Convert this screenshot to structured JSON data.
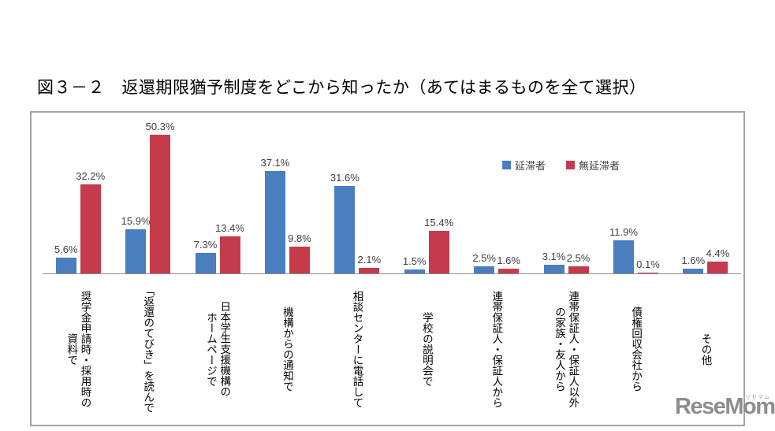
{
  "page": {
    "title": "図３－２　返還期限猶予制度をどこから知ったか（あてはまるものを全て選択）"
  },
  "watermark": {
    "text": "ReseMom.",
    "ruby": "リセマム",
    "color": "#8d8d8d"
  },
  "chart_data": {
    "type": "bar",
    "title": "返還期限猶予制度をどこから知ったか（あてはまるものを全て選択）",
    "value_suffix": "%",
    "ylim": [
      0,
      55
    ],
    "grid": false,
    "legend_position": "top-right",
    "categories": [
      [
        "奨学金申請時・採用時の",
        "資料で"
      ],
      [
        "「返還のてびき」を読んで"
      ],
      [
        "日本学生支援機構の",
        "ホームページで"
      ],
      [
        "機構からの通知で"
      ],
      [
        "相談センターに電話して"
      ],
      [
        "学校の説明会で"
      ],
      [
        "連帯保証人・保証人から"
      ],
      [
        "連帯保証人・保証人以外",
        "の家族・友人から"
      ],
      [
        "債権回収会社から"
      ],
      [
        "その他"
      ]
    ],
    "series": [
      {
        "name": "延滞者",
        "color": "#4A7EBE",
        "values": [
          5.6,
          15.9,
          7.3,
          37.1,
          31.6,
          1.5,
          2.5,
          3.1,
          11.9,
          1.6
        ]
      },
      {
        "name": "無延滞者",
        "color": "#C53B4B",
        "values": [
          32.2,
          50.3,
          13.4,
          9.8,
          2.1,
          15.4,
          1.6,
          2.5,
          0.1,
          4.4
        ]
      }
    ]
  }
}
